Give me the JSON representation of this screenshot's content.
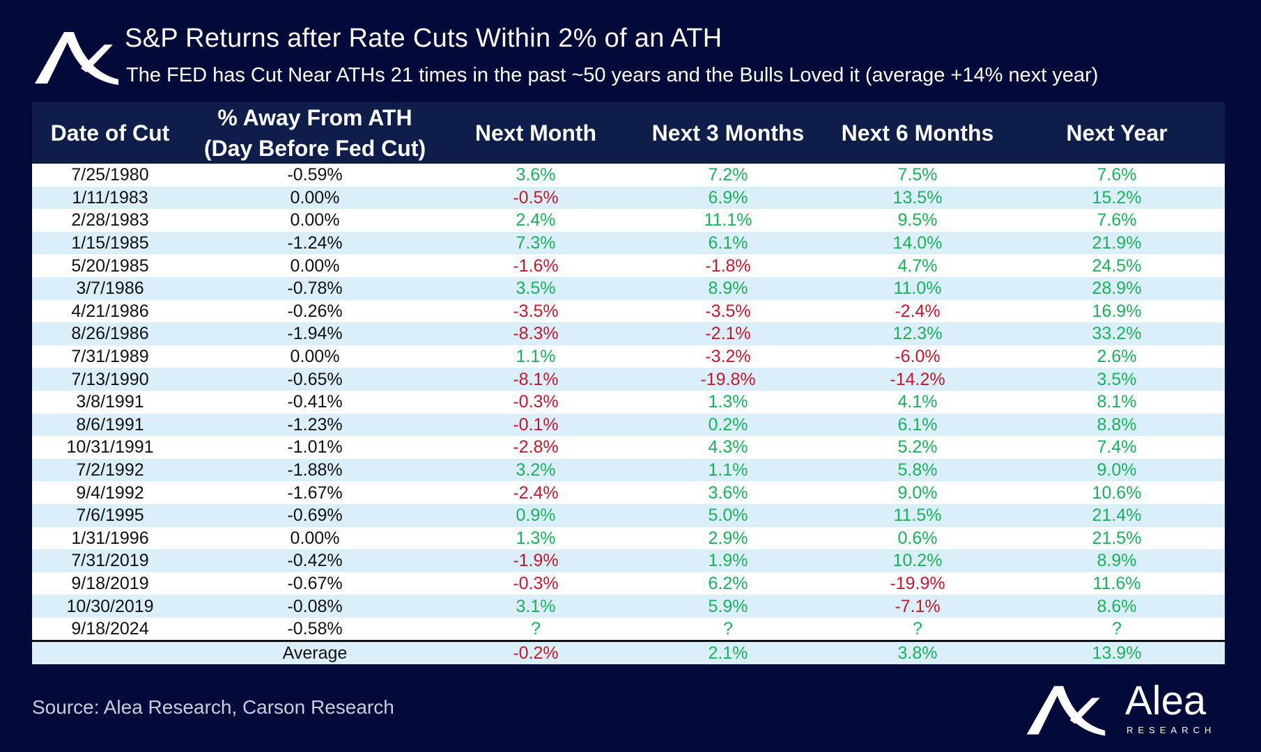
{
  "header": {
    "title": "S&P Returns after Rate Cuts Within 2% of an ATH",
    "subtitle": "The FED has Cut Near ATHs 21 times in the past ~50 years and the Bulls Loved it (average +14% next year)"
  },
  "colors": {
    "background": "#020a3a",
    "header_bg": "#0e1d4a",
    "positive": "#19b25a",
    "negative": "#c4182b",
    "stripe": "#dbeffb"
  },
  "chart_data": {
    "type": "table",
    "title": "S&P Returns after Rate Cuts Within 2% of an ATH",
    "columns": [
      "Date of Cut",
      "% Away From ATH",
      "(Day Before Fed Cut)",
      "Next Month",
      "Next 3 Months",
      "Next 6 Months",
      "Next Year"
    ],
    "rows": [
      [
        "7/25/1980",
        "-0.59%",
        "3.6%",
        "7.2%",
        "7.5%",
        "7.6%"
      ],
      [
        "1/11/1983",
        "0.00%",
        "-0.5%",
        "6.9%",
        "13.5%",
        "15.2%"
      ],
      [
        "2/28/1983",
        "0.00%",
        "2.4%",
        "11.1%",
        "9.5%",
        "7.6%"
      ],
      [
        "1/15/1985",
        "-1.24%",
        "7.3%",
        "6.1%",
        "14.0%",
        "21.9%"
      ],
      [
        "5/20/1985",
        "0.00%",
        "-1.6%",
        "-1.8%",
        "4.7%",
        "24.5%"
      ],
      [
        "3/7/1986",
        "-0.78%",
        "3.5%",
        "8.9%",
        "11.0%",
        "28.9%"
      ],
      [
        "4/21/1986",
        "-0.26%",
        "-3.5%",
        "-3.5%",
        "-2.4%",
        "16.9%"
      ],
      [
        "8/26/1986",
        "-1.94%",
        "-8.3%",
        "-2.1%",
        "12.3%",
        "33.2%"
      ],
      [
        "7/31/1989",
        "0.00%",
        "1.1%",
        "-3.2%",
        "-6.0%",
        "2.6%"
      ],
      [
        "7/13/1990",
        "-0.65%",
        "-8.1%",
        "-19.8%",
        "-14.2%",
        "3.5%"
      ],
      [
        "3/8/1991",
        "-0.41%",
        "-0.3%",
        "1.3%",
        "4.1%",
        "8.1%"
      ],
      [
        "8/6/1991",
        "-1.23%",
        "-0.1%",
        "0.2%",
        "6.1%",
        "8.8%"
      ],
      [
        "10/31/1991",
        "-1.01%",
        "-2.8%",
        "4.3%",
        "5.2%",
        "7.4%"
      ],
      [
        "7/2/1992",
        "-1.88%",
        "3.2%",
        "1.1%",
        "5.8%",
        "9.0%"
      ],
      [
        "9/4/1992",
        "-1.67%",
        "-2.4%",
        "3.6%",
        "9.0%",
        "10.6%"
      ],
      [
        "7/6/1995",
        "-0.69%",
        "0.9%",
        "5.0%",
        "11.5%",
        "21.4%"
      ],
      [
        "1/31/1996",
        "0.00%",
        "1.3%",
        "2.9%",
        "0.6%",
        "21.5%"
      ],
      [
        "7/31/2019",
        "-0.42%",
        "-1.9%",
        "1.9%",
        "10.2%",
        "8.9%"
      ],
      [
        "9/18/2019",
        "-0.67%",
        "-0.3%",
        "6.2%",
        "-19.9%",
        "11.6%"
      ],
      [
        "10/30/2019",
        "-0.08%",
        "3.1%",
        "5.9%",
        "-7.1%",
        "8.6%"
      ],
      [
        "9/18/2024",
        "-0.58%",
        "?",
        "?",
        "?",
        "?"
      ]
    ],
    "average": {
      "label": "Average",
      "values": [
        "-0.2%",
        "2.1%",
        "3.8%",
        "13.9%"
      ]
    }
  },
  "footer": {
    "source": "Source: Alea Research, Carson Research",
    "brand_name": "Alea",
    "brand_sub": "RESEARCH"
  }
}
